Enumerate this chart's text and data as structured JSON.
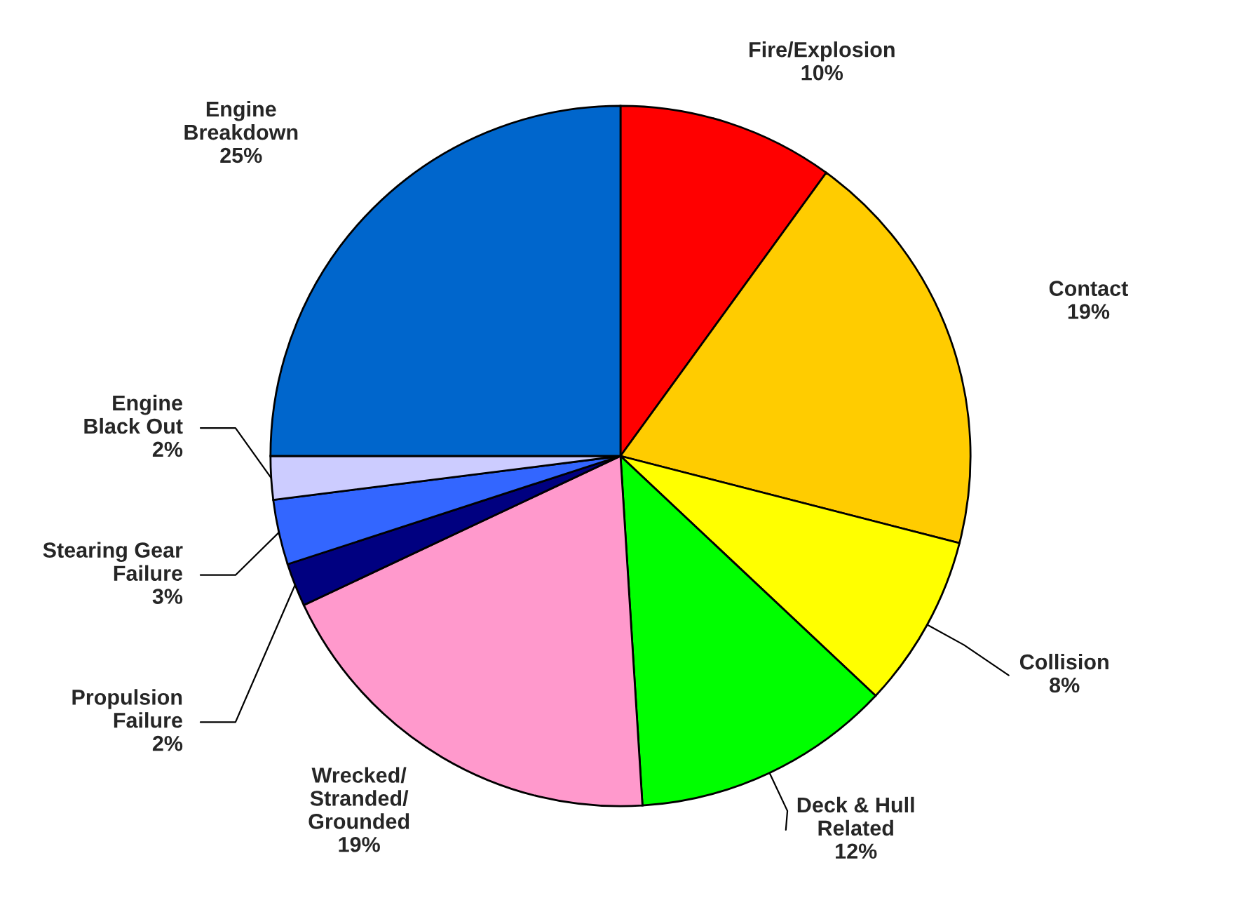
{
  "chart_data": {
    "type": "pie",
    "categories": [
      "Fire/Explosion",
      "Contact",
      "Collision",
      "Deck & Hull\nRelated",
      "Wrecked/\nStranded/\nGrounded",
      "Propulsion\nFailure",
      "Stearing Gear\nFailure",
      "Engine\nBlack Out",
      "Engine\nBreakdown"
    ],
    "values": [
      10,
      19,
      8,
      12,
      19,
      2,
      3,
      2,
      25
    ],
    "value_labels": [
      "10%",
      "19%",
      "8%",
      "12%",
      "19%",
      "2%",
      "3%",
      "2%",
      "25%"
    ],
    "colors": [
      "#ff0000",
      "#ffcc00",
      "#ffff00",
      "#00ff00",
      "#ff99cc",
      "#000080",
      "#3366ff",
      "#ccccff",
      "#0066cc"
    ]
  }
}
